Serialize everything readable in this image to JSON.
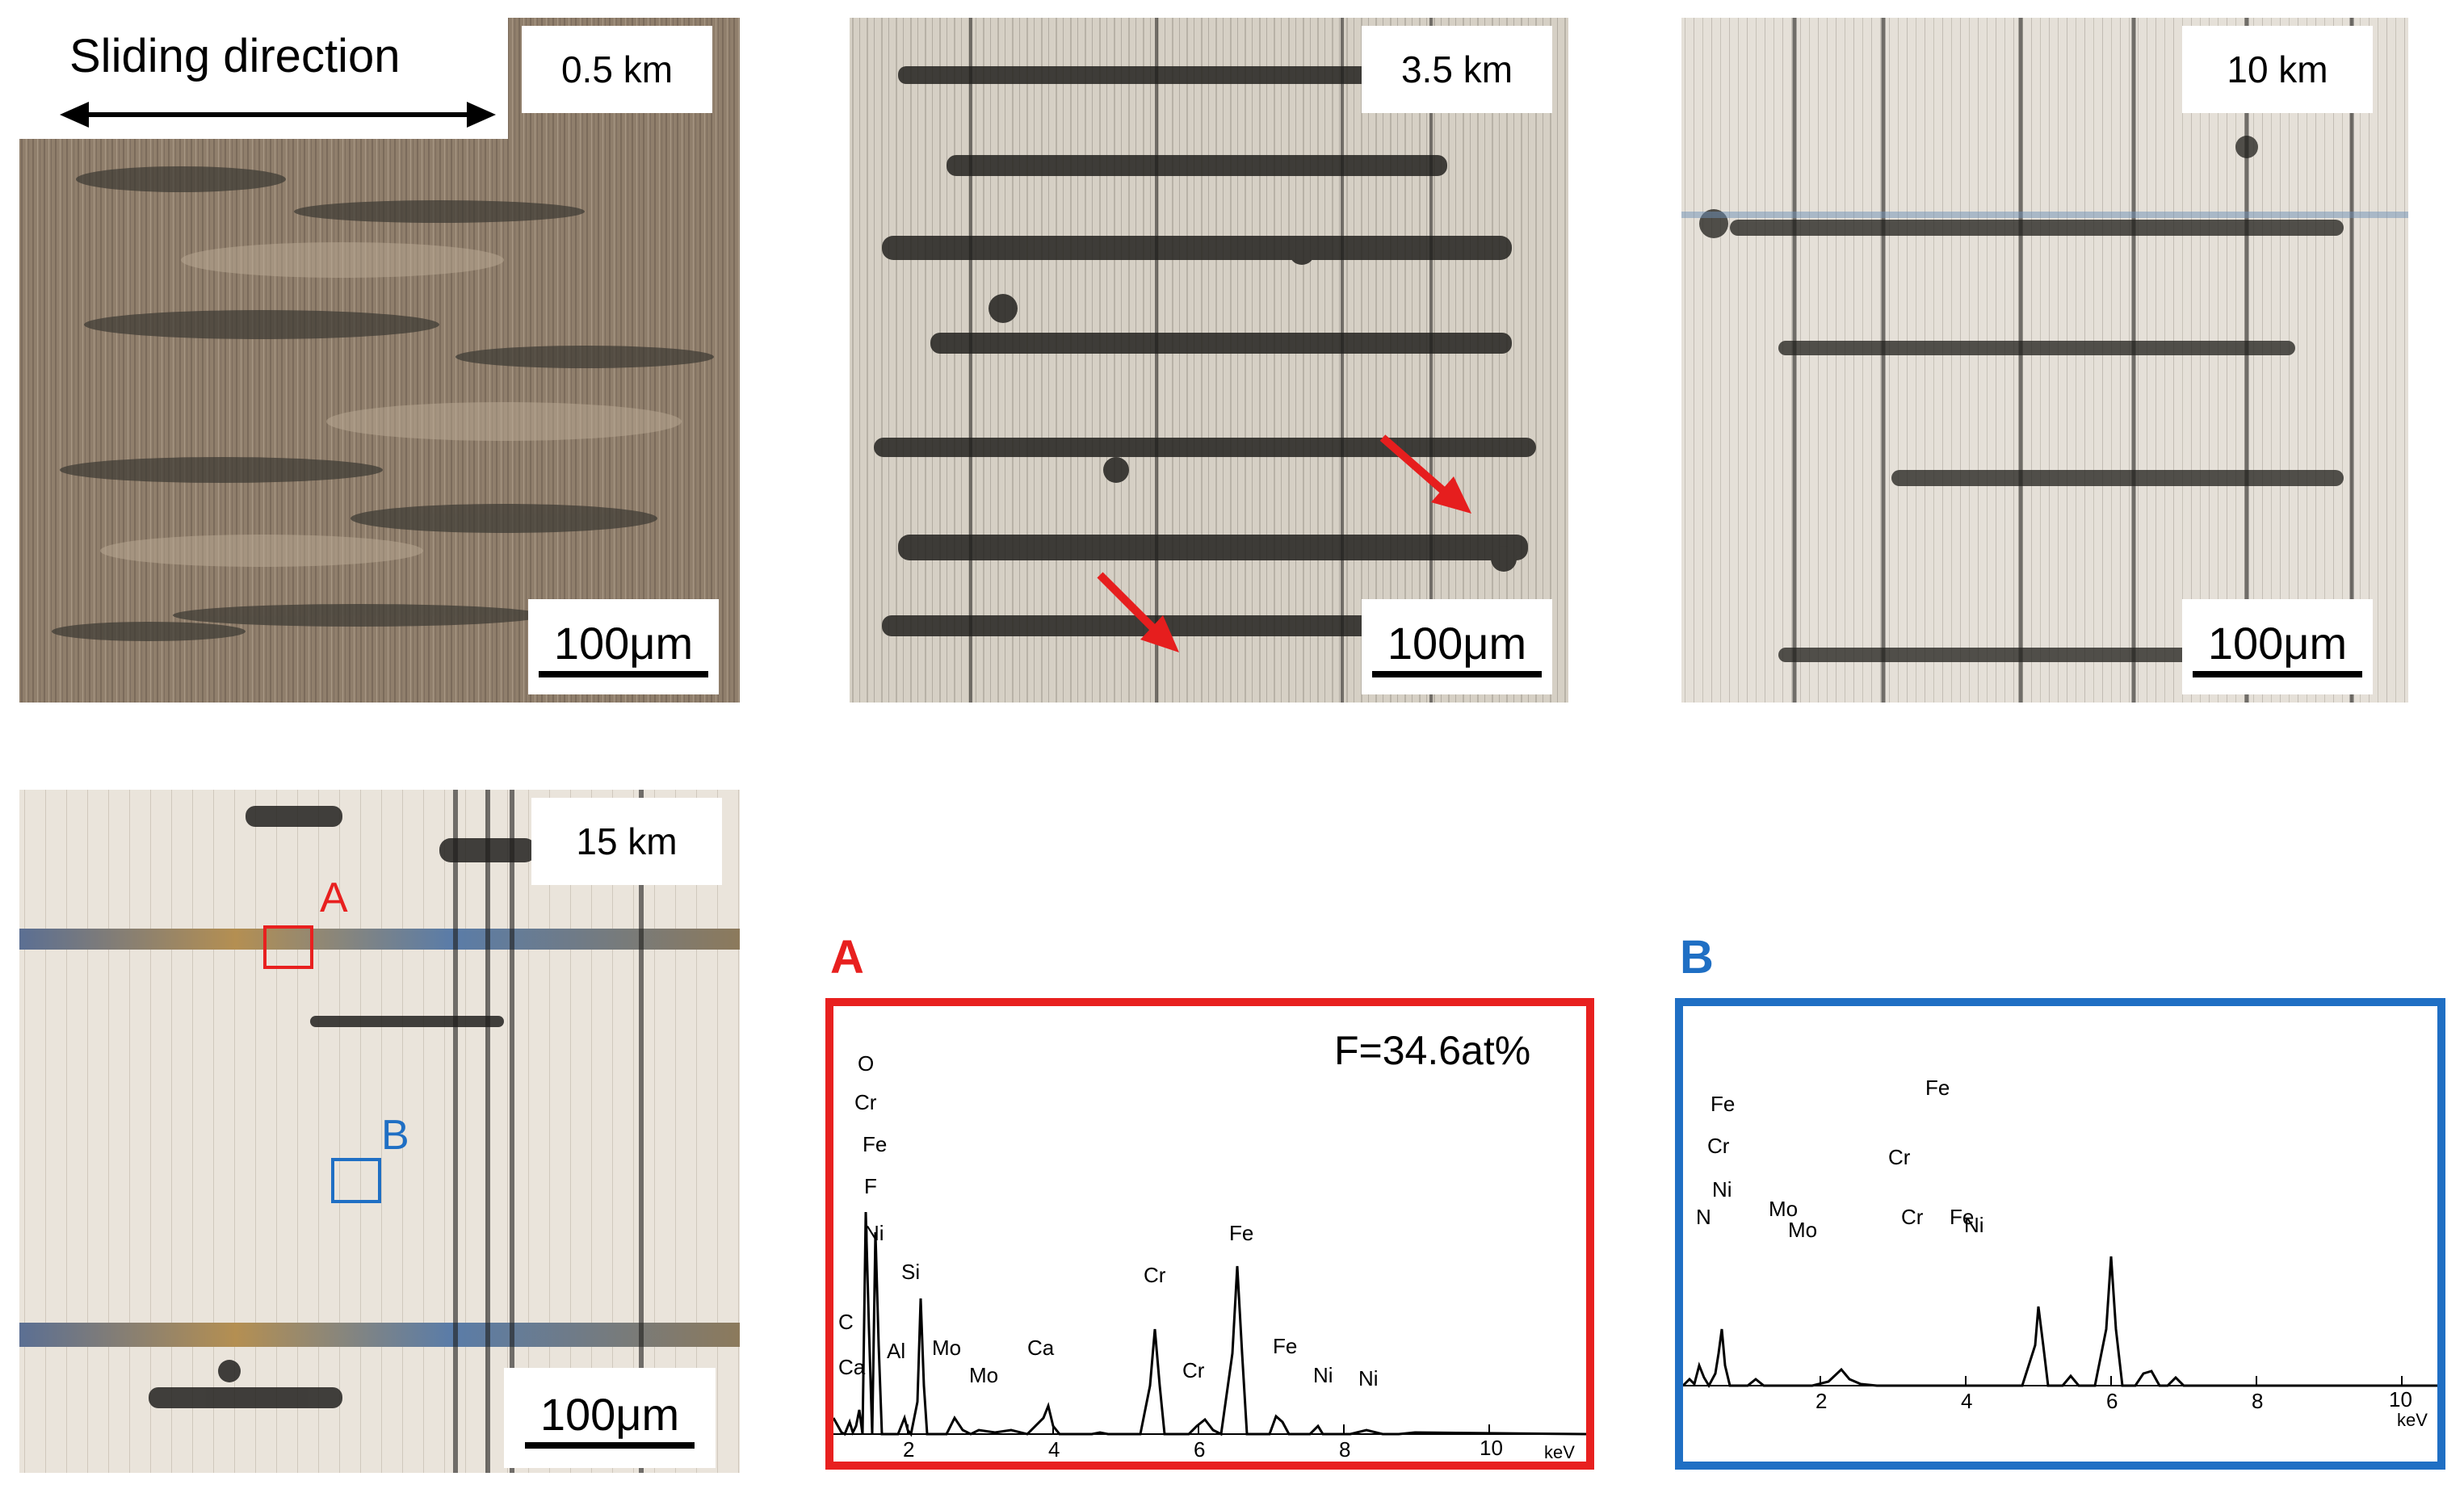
{
  "micrographs": [
    {
      "id": "0.5km",
      "distance_label": "0.5 km",
      "scale_label": "100μm",
      "tone": "dark"
    },
    {
      "id": "3.5km",
      "distance_label": "3.5 km",
      "scale_label": "100μm",
      "tone": "medium"
    },
    {
      "id": "10km",
      "distance_label": "10 km",
      "scale_label": "100μm",
      "tone": "light"
    },
    {
      "id": "15km",
      "distance_label": "15 km",
      "scale_label": "100μm",
      "tone": "light"
    }
  ],
  "sliding_direction_label": "Sliding direction",
  "roi": {
    "A": {
      "label": "A",
      "color": "#e8201f"
    },
    "B": {
      "label": "B",
      "color": "#1f6fc4"
    }
  },
  "eds_panels": [
    {
      "letter": "A",
      "color": "#e8201f",
      "annotation": "F=34.6at%",
      "x_ticks": [
        "2",
        "4",
        "6",
        "8",
        "10"
      ],
      "x_unit": "keV",
      "peak_labels": [
        "O",
        "Cr",
        "Fe",
        "F",
        "Ni",
        "C",
        "Ca",
        "Al",
        "Si",
        "Mo",
        "Mo",
        "Ca",
        "Cr",
        "Cr",
        "Fe",
        "Fe",
        "Ni",
        "Ni"
      ]
    },
    {
      "letter": "B",
      "color": "#1f6fc4",
      "annotation": "",
      "x_ticks": [
        "2",
        "4",
        "6",
        "8",
        "10"
      ],
      "x_unit": "keV",
      "peak_labels": [
        "Fe",
        "Cr",
        "Ni",
        "N",
        "Mo",
        "Mo",
        "Cr",
        "Fe",
        "Cr",
        "Fe",
        "Ni"
      ]
    }
  ]
}
